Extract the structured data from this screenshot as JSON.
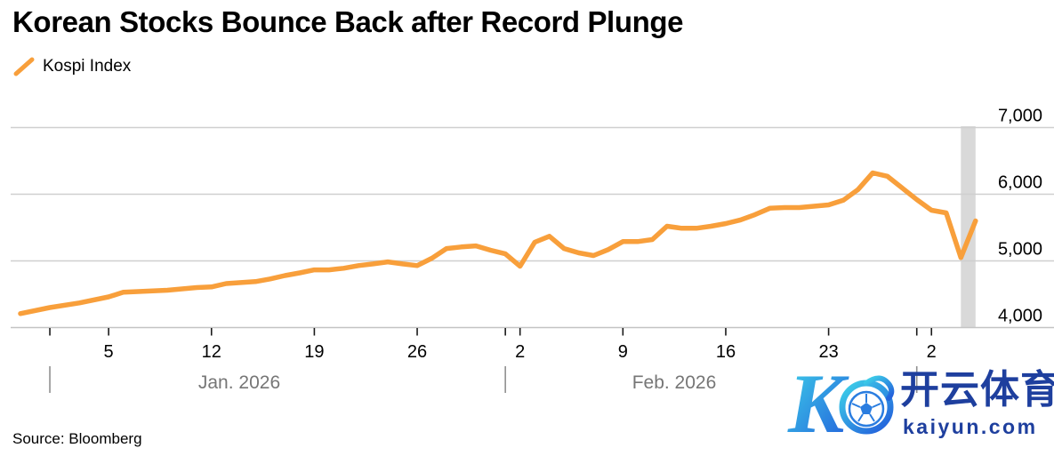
{
  "header": {
    "title": "Korean Stocks Bounce Back after Record Plunge"
  },
  "legend": {
    "series_label": "Kospi Index",
    "marker_color": "#F89F3B"
  },
  "source": {
    "label": "Source: Bloomberg"
  },
  "watermark": {
    "monogram": "K",
    "brand_cn": "开云体育",
    "brand_domain": "kaiyun.com",
    "text_color": "#1e3f9e",
    "gradient_start": "#3ED3E9",
    "gradient_end": "#2463DC"
  },
  "chart_data": {
    "type": "line",
    "title": "Korean Stocks Bounce Back after Record Plunge",
    "xlabel": "",
    "ylabel": "",
    "xlim": [
      "2025-12-30",
      "2026-03-05"
    ],
    "ylim": [
      4000,
      7000
    ],
    "grid": "horizontal",
    "legend_position": "top-left",
    "y_axis": {
      "side": "right",
      "ticks": [
        {
          "label": "7,000",
          "value": 7000
        },
        {
          "label": "6,000",
          "value": 6000
        },
        {
          "label": "5,000",
          "value": 5000
        },
        {
          "label": "4,000",
          "value": 4000
        }
      ]
    },
    "x_axis": {
      "day_ticks": [
        {
          "label": "5",
          "date": "2026-01-05"
        },
        {
          "label": "12",
          "date": "2026-01-12"
        },
        {
          "label": "19",
          "date": "2026-01-19"
        },
        {
          "label": "26",
          "date": "2026-01-26"
        },
        {
          "label": "2",
          "date": "2026-02-02"
        },
        {
          "label": "9",
          "date": "2026-02-09"
        },
        {
          "label": "16",
          "date": "2026-02-16"
        },
        {
          "label": "23",
          "date": "2026-02-23"
        },
        {
          "label": "2",
          "date": "2026-03-02"
        }
      ],
      "unlabeled_ticks": [
        "2026-01-01",
        "2026-02-01",
        "2026-03-01"
      ],
      "month_separators": [
        "2026-01-01",
        "2026-02-01",
        "2026-03-01"
      ],
      "month_labels": [
        {
          "label": "Jan. 2026"
        },
        {
          "label": "Feb. 2026"
        }
      ]
    },
    "highlight_band": {
      "from": "2026-03-04",
      "to": "2026-03-05",
      "color": "#d9d9d9"
    },
    "series": [
      {
        "name": "Kospi Index",
        "color": "#F89F3B",
        "points": [
          [
            "2025-12-30",
            4210
          ],
          [
            "2026-01-01",
            4300
          ],
          [
            "2026-01-03",
            4370
          ],
          [
            "2026-01-05",
            4460
          ],
          [
            "2026-01-06",
            4530
          ],
          [
            "2026-01-07",
            4540
          ],
          [
            "2026-01-09",
            4560
          ],
          [
            "2026-01-10",
            4580
          ],
          [
            "2026-01-11",
            4600
          ],
          [
            "2026-01-12",
            4610
          ],
          [
            "2026-01-13",
            4660
          ],
          [
            "2026-01-15",
            4690
          ],
          [
            "2026-01-16",
            4730
          ],
          [
            "2026-01-17",
            4780
          ],
          [
            "2026-01-18",
            4820
          ],
          [
            "2026-01-19",
            4865
          ],
          [
            "2026-01-20",
            4865
          ],
          [
            "2026-01-21",
            4890
          ],
          [
            "2026-01-22",
            4930
          ],
          [
            "2026-01-23",
            4955
          ],
          [
            "2026-01-24",
            4985
          ],
          [
            "2026-01-25",
            4955
          ],
          [
            "2026-01-26",
            4930
          ],
          [
            "2026-01-27",
            5040
          ],
          [
            "2026-01-28",
            5185
          ],
          [
            "2026-01-29",
            5210
          ],
          [
            "2026-01-30",
            5225
          ],
          [
            "2026-01-31",
            5160
          ],
          [
            "2026-02-01",
            5105
          ],
          [
            "2026-02-02",
            4920
          ],
          [
            "2026-02-03",
            5280
          ],
          [
            "2026-02-04",
            5370
          ],
          [
            "2026-02-05",
            5185
          ],
          [
            "2026-02-06",
            5120
          ],
          [
            "2026-02-07",
            5080
          ],
          [
            "2026-02-08",
            5170
          ],
          [
            "2026-02-09",
            5290
          ],
          [
            "2026-02-10",
            5290
          ],
          [
            "2026-02-11",
            5320
          ],
          [
            "2026-02-12",
            5520
          ],
          [
            "2026-02-13",
            5490
          ],
          [
            "2026-02-14",
            5490
          ],
          [
            "2026-02-15",
            5520
          ],
          [
            "2026-02-16",
            5560
          ],
          [
            "2026-02-17",
            5615
          ],
          [
            "2026-02-18",
            5695
          ],
          [
            "2026-02-19",
            5790
          ],
          [
            "2026-02-20",
            5800
          ],
          [
            "2026-02-21",
            5800
          ],
          [
            "2026-02-23",
            5840
          ],
          [
            "2026-02-24",
            5910
          ],
          [
            "2026-02-25",
            6070
          ],
          [
            "2026-02-26",
            6320
          ],
          [
            "2026-02-27",
            6270
          ],
          [
            "2026-02-28",
            6095
          ],
          [
            "2026-03-01",
            5920
          ],
          [
            "2026-03-02",
            5760
          ],
          [
            "2026-03-03",
            5720
          ],
          [
            "2026-03-04",
            5050
          ],
          [
            "2026-03-05",
            5600
          ]
        ]
      }
    ]
  }
}
